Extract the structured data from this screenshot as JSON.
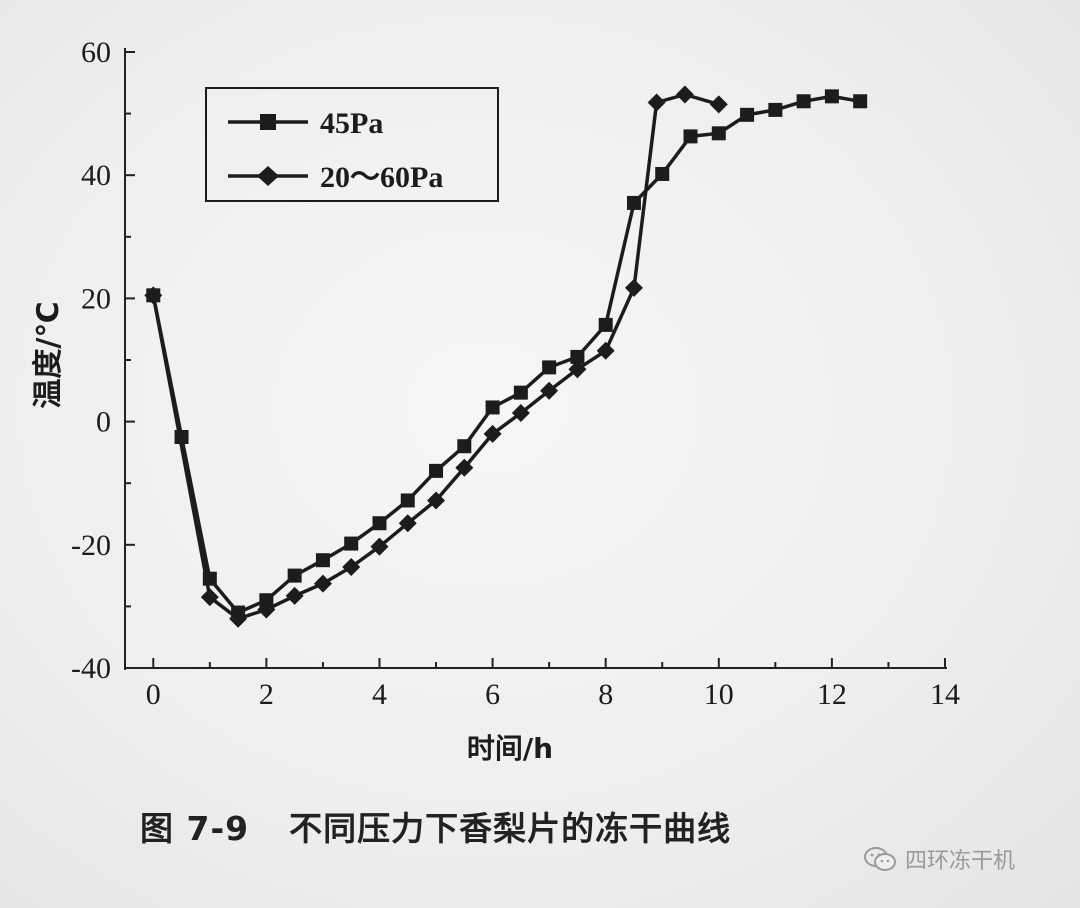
{
  "figure_label": "图 7-9",
  "caption_text": "不同压力下香梨片的冻干曲线",
  "watermark_text": "四环冻干机",
  "colors": {
    "ink": "#1c1c1c",
    "axis": "#222222",
    "watermark": "#9a9a9a"
  },
  "chart_data": {
    "type": "line",
    "title": "",
    "xlabel": "时间/h",
    "ylabel": "温度/℃",
    "xlim": [
      -0.5,
      14
    ],
    "ylim": [
      -40,
      60
    ],
    "xticks": [
      0,
      2,
      4,
      6,
      8,
      10,
      12,
      14
    ],
    "yticks": [
      -40,
      -20,
      0,
      20,
      40,
      60
    ],
    "xtick_labels": [
      "0",
      "2",
      "4",
      "6",
      "8",
      "10",
      "12",
      "14"
    ],
    "ytick_labels": [
      "-40",
      "-20",
      "0",
      "20",
      "40",
      "60"
    ],
    "legend_position": "top-left",
    "series": [
      {
        "name": "45Pa",
        "marker": "square",
        "x": [
          0,
          0.5,
          1,
          1.5,
          2,
          2.5,
          3,
          3.5,
          4,
          4.5,
          5,
          5.5,
          6,
          6.5,
          7,
          7.5,
          8,
          8.5,
          9,
          9.5,
          10,
          10.5,
          11,
          11.5,
          12,
          12.5
        ],
        "y": [
          20.5,
          -2.5,
          -25.5,
          -31,
          -29,
          -25,
          -22.5,
          -19.8,
          -16.5,
          -12.8,
          -8,
          -4,
          2.3,
          4.7,
          8.8,
          10.5,
          15.7,
          35.5,
          40.2,
          46.3,
          46.8,
          49.8,
          50.6,
          52,
          52.8,
          52
        ]
      },
      {
        "name": "20～60Pa",
        "marker": "diamond",
        "x": [
          0,
          1,
          1.5,
          2,
          2.5,
          3,
          3.5,
          4,
          4.5,
          5,
          5.5,
          6,
          6.5,
          7,
          7.5,
          8,
          8.5,
          8.9,
          9.4,
          10
        ],
        "y": [
          20.5,
          -28.5,
          -32,
          -30.5,
          -28.3,
          -26.3,
          -23.6,
          -20.3,
          -16.5,
          -12.8,
          -7.5,
          -2,
          1.4,
          5,
          8.5,
          11.5,
          21.7,
          51.8,
          53.1,
          51.5
        ]
      }
    ]
  }
}
